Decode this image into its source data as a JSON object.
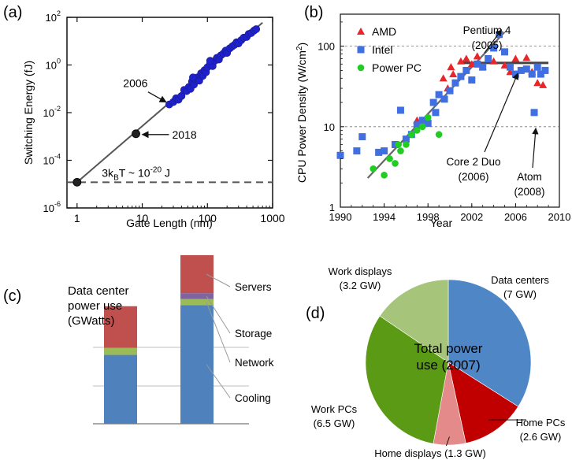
{
  "panel_labels": {
    "a": "(a)",
    "b": "(b)",
    "c": "(c)",
    "d": "(d)"
  },
  "colors": {
    "amd": "#e8262a",
    "intel": "#3f6fe0",
    "powerpc": "#22cc22",
    "scaling": "#1f22cc",
    "fit_line": "#555555",
    "servers": "#c0504d",
    "storage": "#8064a2",
    "network": "#9bbb59",
    "cooling": "#4f81bd",
    "pie_data_centers": "#4f86c6",
    "pie_home_pcs": "#c00000",
    "pie_home_displays": "#e58a8a",
    "pie_work_pcs": "#5b9a14",
    "pie_work_displays": "#a6c47a"
  },
  "chart_data": [
    {
      "id": "a",
      "type": "scatter",
      "xlabel": "Gate Length (nm)",
      "ylabel": "Switching Energy (fJ)",
      "xscale": "log",
      "yscale": "log",
      "xlim": [
        0.7,
        1000
      ],
      "ylim": [
        1e-06,
        100
      ],
      "x_ticks": [
        1,
        10,
        100,
        1000
      ],
      "x_tick_labels": [
        "1",
        "10",
        "100",
        "1000"
      ],
      "y_ticks": [
        1e-06,
        0.0001,
        0.01,
        1,
        100
      ],
      "y_tick_labels": [
        {
          "base": "10",
          "exp": "-6"
        },
        {
          "base": "10",
          "exp": "-4"
        },
        {
          "base": "10",
          "exp": "-2"
        },
        {
          "base": "10",
          "exp": "0"
        },
        {
          "base": "10",
          "exp": "2"
        }
      ],
      "trend_line": [
        [
          1,
          1.2e-05
        ],
        [
          700,
          60
        ]
      ],
      "thermal_limit": {
        "y": 1.2e-05,
        "label_main": "3k",
        "label_sub": "B",
        "label_rest": "T ~ 10",
        "label_exp": "-20",
        "label_unit": " J"
      },
      "series": [
        {
          "marker": "blue-circle",
          "points": [
            [
              26,
              0.022
            ],
            [
              30,
              0.028
            ],
            [
              33,
              0.04
            ],
            [
              36,
              0.035
            ],
            [
              40,
              0.05
            ],
            [
              44,
              0.09
            ],
            [
              48,
              0.08
            ],
            [
              52,
              0.12
            ],
            [
              55,
              0.1
            ],
            [
              58,
              0.2
            ],
            [
              62,
              0.15
            ],
            [
              66,
              0.25
            ],
            [
              70,
              0.3
            ],
            [
              75,
              0.22
            ],
            [
              80,
              0.45
            ],
            [
              85,
              0.35
            ],
            [
              90,
              0.6
            ],
            [
              95,
              0.5
            ],
            [
              100,
              0.8
            ],
            [
              110,
              1.1
            ],
            [
              120,
              0.9
            ],
            [
              130,
              1.5
            ],
            [
              140,
              2.0
            ],
            [
              150,
              1.7
            ],
            [
              160,
              2.5
            ],
            [
              175,
              3.0
            ],
            [
              190,
              4.0
            ],
            [
              200,
              3.2
            ],
            [
              220,
              5.0
            ],
            [
              240,
              6.0
            ],
            [
              260,
              7.0
            ],
            [
              280,
              9.0
            ],
            [
              300,
              8.0
            ],
            [
              330,
              11
            ],
            [
              360,
              14
            ],
            [
              400,
              15
            ],
            [
              430,
              20
            ],
            [
              470,
              22
            ],
            [
              520,
              28
            ],
            [
              560,
              32
            ],
            [
              60,
              0.3
            ],
            [
              110,
              1.5
            ]
          ]
        },
        {
          "marker": "black-circle",
          "points": [
            [
              1,
              1.2e-05
            ],
            [
              8,
              0.0013
            ]
          ]
        }
      ],
      "annotations": [
        {
          "text": "2006",
          "target": [
            26,
            0.022
          ]
        },
        {
          "text": "2018",
          "target": [
            8,
            0.0013
          ]
        }
      ]
    },
    {
      "id": "b",
      "type": "scatter",
      "xlabel": "Year",
      "ylabel_main": "CPU Power Density (W/cm",
      "ylabel_sup": "2",
      "ylabel_end": ")",
      "xscale": "linear",
      "yscale": "log",
      "xlim": [
        1990,
        2010
      ],
      "ylim": [
        1,
        250
      ],
      "x_ticks": [
        1990,
        1994,
        1998,
        2002,
        2006,
        2010
      ],
      "y_ticks": [
        1,
        10,
        100
      ],
      "y_tick_labels": [
        "1",
        "10",
        "100"
      ],
      "reference_lines": [
        10,
        100
      ],
      "trend_line": [
        [
          1992.5,
          2.3
        ],
        [
          2005,
          150
        ]
      ],
      "plateau_line": {
        "y": 62,
        "x": [
          2001,
          2009
        ]
      },
      "legend": [
        {
          "name": "AMD",
          "marker": "triangle",
          "color_key": "amd"
        },
        {
          "name": "Intel",
          "marker": "square",
          "color_key": "intel"
        },
        {
          "name": "Power PC",
          "marker": "circle",
          "color_key": "powerpc"
        }
      ],
      "series": [
        {
          "name": "AMD",
          "marker": "triangle",
          "points": [
            [
              1997,
              12
            ],
            [
              1999.4,
              40
            ],
            [
              1999.8,
              30
            ],
            [
              2000.1,
              55
            ],
            [
              2000.3,
              45
            ],
            [
              2001,
              65
            ],
            [
              2001.5,
              70
            ],
            [
              2002,
              60
            ],
            [
              2002.5,
              75
            ],
            [
              2003,
              55
            ],
            [
              2004,
              65
            ],
            [
              2005,
              58
            ],
            [
              2005.5,
              48
            ],
            [
              2006,
              70
            ],
            [
              2007,
              72
            ],
            [
              2007.5,
              48
            ],
            [
              2008,
              35
            ],
            [
              2008.5,
              33
            ]
          ]
        },
        {
          "name": "Intel",
          "marker": "square",
          "points": [
            [
              1990,
              4.4
            ],
            [
              1991.5,
              5.0
            ],
            [
              1992,
              7.5
            ],
            [
              1993.5,
              4.8
            ],
            [
              1994,
              5.0
            ],
            [
              1995,
              6.0
            ],
            [
              1995.5,
              16
            ],
            [
              1996,
              7.0
            ],
            [
              1996.5,
              8.0
            ],
            [
              1997,
              10.5
            ],
            [
              1997.5,
              12
            ],
            [
              1998,
              11
            ],
            [
              1998.5,
              20
            ],
            [
              1998.7,
              15
            ],
            [
              1999,
              25
            ],
            [
              1999.5,
              22
            ],
            [
              2000,
              28
            ],
            [
              2000.5,
              35
            ],
            [
              2001,
              42
            ],
            [
              2001.5,
              50
            ],
            [
              2002,
              38
            ],
            [
              2002.5,
              60
            ],
            [
              2003,
              55
            ],
            [
              2003.5,
              70
            ],
            [
              2004,
              95
            ],
            [
              2004.5,
              140
            ],
            [
              2005,
              85
            ],
            [
              2005.5,
              55
            ],
            [
              2006,
              45
            ],
            [
              2006.5,
              50
            ],
            [
              2007,
              52
            ],
            [
              2007.5,
              45
            ],
            [
              2007.7,
              15
            ],
            [
              2008,
              55
            ],
            [
              2008.3,
              45
            ],
            [
              2008.7,
              50
            ]
          ]
        },
        {
          "name": "Power PC",
          "marker": "circle",
          "points": [
            [
              1993,
              3.0
            ],
            [
              1994,
              2.5
            ],
            [
              1994.5,
              4.0
            ],
            [
              1995,
              3.5
            ],
            [
              1995.5,
              5.0
            ],
            [
              1996,
              6.0
            ],
            [
              1996.5,
              8.0
            ],
            [
              1997,
              9.0
            ],
            [
              1997.5,
              10
            ],
            [
              1998,
              13
            ],
            [
              1999,
              8.0
            ],
            [
              1995.3,
              6.0
            ]
          ]
        }
      ],
      "annotations": [
        {
          "line1": "Pentium 4",
          "line2": "(2005)",
          "target": [
            2004.5,
            140
          ]
        },
        {
          "line1": "Core 2 Duo",
          "line2": "(2006)",
          "target": [
            2006.2,
            55
          ]
        },
        {
          "line1": "Atom",
          "line2": "(2008)",
          "target": [
            2007.7,
            10
          ]
        }
      ]
    },
    {
      "id": "c",
      "type": "bar",
      "stacked": true,
      "title_lines": [
        "Data center",
        "power use",
        "(GWatts)"
      ],
      "bar_scale_max": 1.3,
      "stack_order": [
        "Cooling",
        "Network",
        "Storage",
        "Servers"
      ],
      "bars": [
        {
          "values": {
            "Cooling": 0.58,
            "Network": 0.06,
            "Storage": 0.0,
            "Servers": 0.35
          }
        },
        {
          "values": {
            "Cooling": 1.0,
            "Network": 0.05,
            "Storage": 0.05,
            "Servers": 0.32
          }
        }
      ],
      "labels": [
        "Servers",
        "Storage",
        "Network",
        "Cooling"
      ]
    },
    {
      "id": "d",
      "type": "pie",
      "center_text": [
        "Total power",
        "use (2007)"
      ],
      "slices": [
        {
          "name": "Data centers",
          "value": 7.0,
          "value_label": "(7 GW)",
          "color_key": "pie_data_centers"
        },
        {
          "name": "Home PCs",
          "value": 2.6,
          "value_label": "(2.6 GW)",
          "color_key": "pie_home_pcs"
        },
        {
          "name": "Home displays",
          "value": 1.3,
          "value_label": "(1.3 GW)",
          "color_key": "pie_home_displays"
        },
        {
          "name": "Work PCs",
          "value": 6.5,
          "value_label": "(6.5 GW)",
          "color_key": "pie_work_pcs"
        },
        {
          "name": "Work displays",
          "value": 3.2,
          "value_label": "(3.2 GW)",
          "color_key": "pie_work_displays"
        }
      ]
    }
  ]
}
